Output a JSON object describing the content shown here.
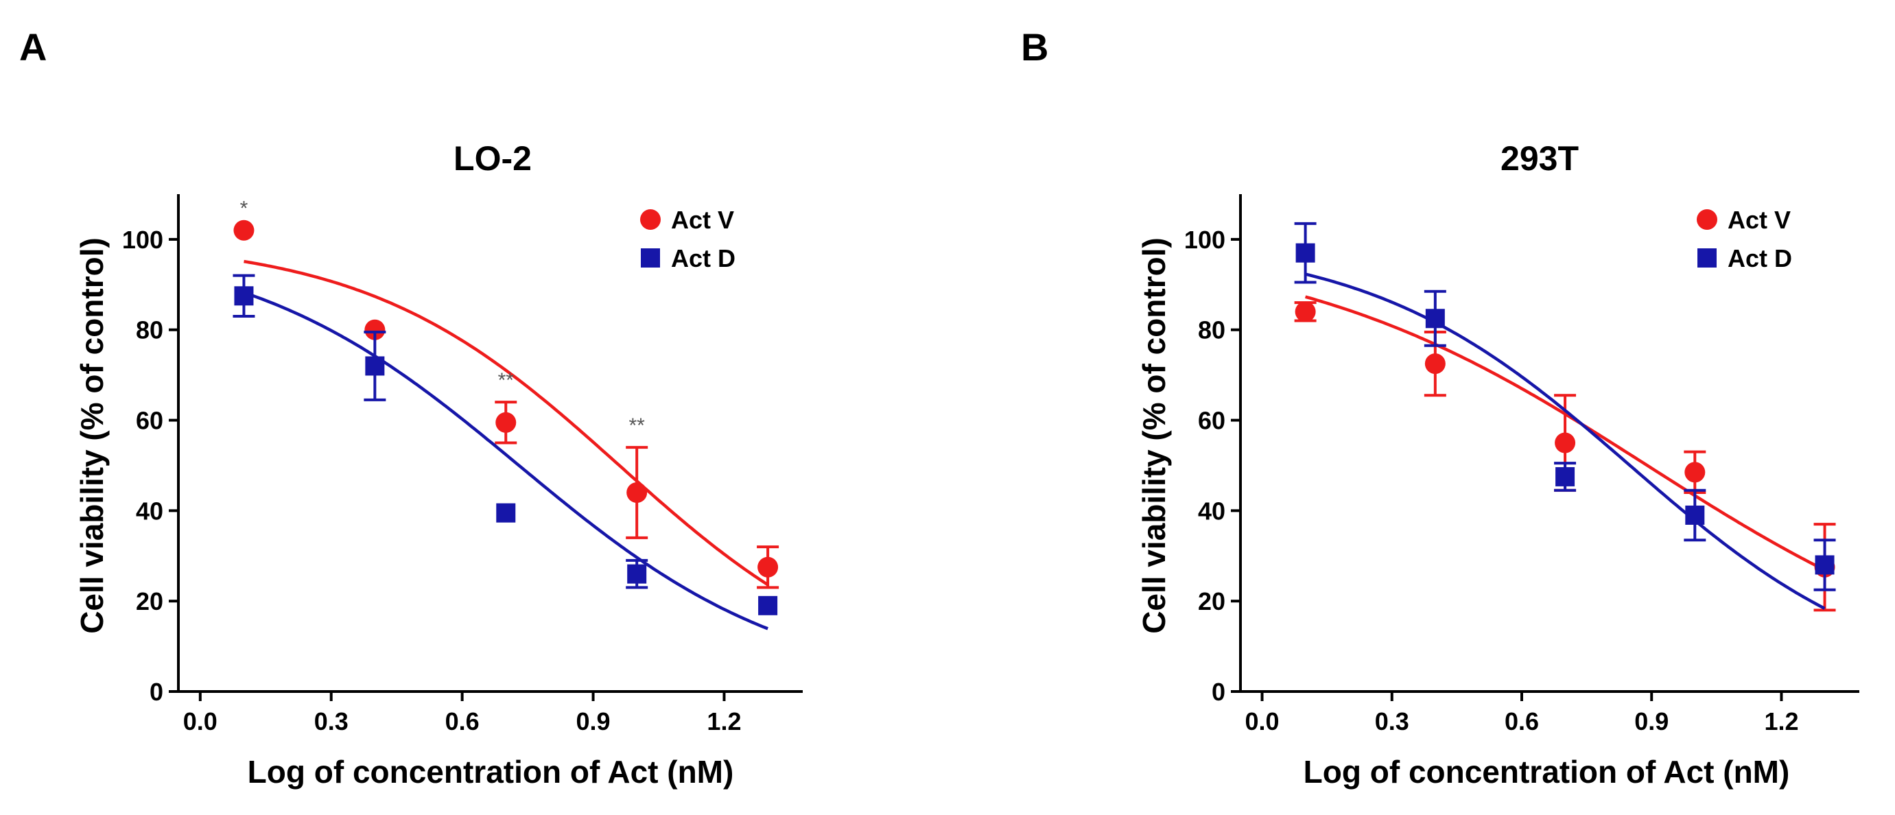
{
  "chart_data": [
    {
      "type": "scatter",
      "panel": "A",
      "title": "LO-2",
      "xlabel": "Log of concentration of Act (nM)",
      "ylabel": "Cell viability (% of control)",
      "xlim": [
        -0.05,
        1.38
      ],
      "ylim": [
        0,
        110
      ],
      "xticks": [
        "0.0",
        "0.3",
        "0.6",
        "0.9",
        "1.2"
      ],
      "xtick_values": [
        0.0,
        0.3,
        0.6,
        0.9,
        1.2
      ],
      "yticks": [
        "0",
        "20",
        "40",
        "60",
        "80",
        "100"
      ],
      "ytick_values": [
        0,
        20,
        40,
        60,
        80,
        100
      ],
      "legend_position": "top-right",
      "series": [
        {
          "name": "Act V",
          "color": "#ee1c1c",
          "marker": "circle",
          "x": [
            0.1,
            0.4,
            0.7,
            1.0,
            1.3
          ],
          "y": [
            102,
            80,
            59.5,
            44,
            27.5
          ],
          "err": [
            0,
            0,
            4.5,
            10,
            4.5
          ],
          "fit": {
            "top": 100,
            "bottom": 0,
            "logEC50": 0.96,
            "hill": 1.5
          }
        },
        {
          "name": "Act D",
          "color": "#1616a8",
          "marker": "square",
          "x": [
            0.1,
            0.4,
            0.7,
            1.0,
            1.3
          ],
          "y": [
            87.5,
            72,
            39.5,
            26,
            19
          ],
          "err": [
            4.5,
            7.5,
            0,
            3,
            0
          ],
          "fit": {
            "top": 100,
            "bottom": 0,
            "logEC50": 0.73,
            "hill": 1.39
          }
        }
      ],
      "annotations": [
        {
          "text": "*",
          "x": 0.1,
          "y": 102
        },
        {
          "text": "**",
          "x": 0.7,
          "y": 64
        },
        {
          "text": "**",
          "x": 1.0,
          "y": 54
        }
      ]
    },
    {
      "type": "scatter",
      "panel": "B",
      "title": "293T",
      "xlabel": "Log of concentration of Act (nM)",
      "ylabel": "Cell viability (% of control)",
      "xlim": [
        -0.05,
        1.38
      ],
      "ylim": [
        0,
        110
      ],
      "xticks": [
        "0.0",
        "0.3",
        "0.6",
        "0.9",
        "1.2"
      ],
      "xtick_values": [
        0.0,
        0.3,
        0.6,
        0.9,
        1.2
      ],
      "yticks": [
        "0",
        "20",
        "40",
        "60",
        "80",
        "100"
      ],
      "ytick_values": [
        0,
        20,
        40,
        60,
        80,
        100
      ],
      "legend_position": "top-right",
      "series": [
        {
          "name": "Act V",
          "color": "#ee1c1c",
          "marker": "circle",
          "x": [
            0.1,
            0.4,
            0.7,
            1.0,
            1.3
          ],
          "y": [
            84,
            72.5,
            55,
            48.5,
            27.5
          ],
          "err": [
            2,
            7,
            10.5,
            4.5,
            9.5
          ],
          "fit": {
            "top": 100,
            "bottom": 0,
            "logEC50": 0.89,
            "hill": 1.06
          }
        },
        {
          "name": "Act D",
          "color": "#1616a8",
          "marker": "square",
          "x": [
            0.1,
            0.4,
            0.7,
            1.0,
            1.3
          ],
          "y": [
            97,
            82.5,
            47.5,
            39,
            28
          ],
          "err": [
            6.5,
            6,
            3,
            5.5,
            5.5
          ],
          "fit": {
            "top": 100,
            "bottom": 0,
            "logEC50": 0.85,
            "hill": 1.44
          }
        }
      ],
      "annotations": []
    }
  ]
}
